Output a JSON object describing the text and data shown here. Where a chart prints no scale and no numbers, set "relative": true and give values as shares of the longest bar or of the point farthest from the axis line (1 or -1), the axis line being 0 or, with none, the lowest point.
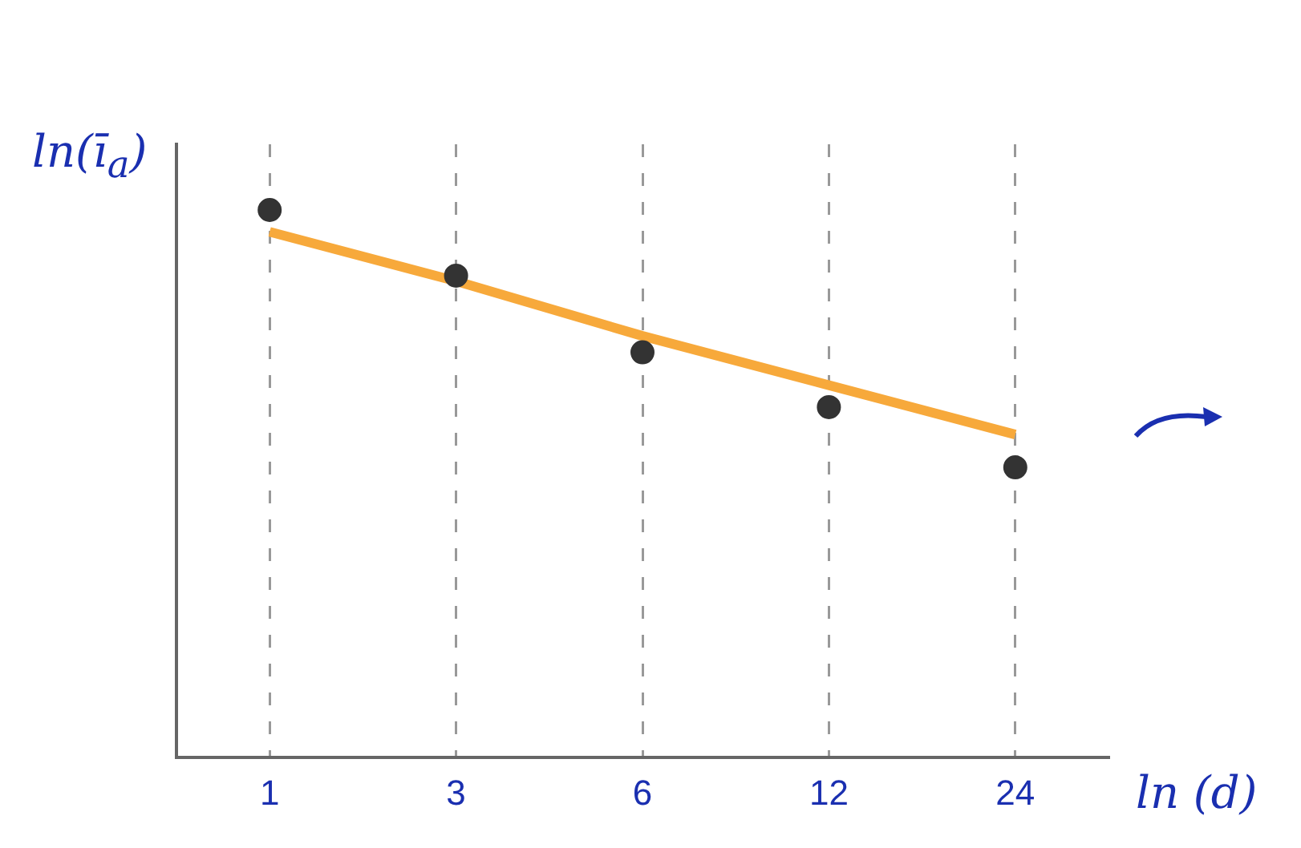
{
  "chart_data": {
    "type": "scatter",
    "xlabel": "ln (d)",
    "ylabel": "ln(ī$_{a}$)",
    "categories": [
      "1",
      "3",
      "6",
      "12",
      "24"
    ],
    "relative": true,
    "grid": "x",
    "legend": false,
    "series": [
      {
        "marker": "circle",
        "color": "#333333",
        "values": [
          1,
          0.88,
          0.74,
          0.64,
          0.53
        ]
      },
      {
        "type": "line",
        "marker": "none",
        "color": "#f7a93b",
        "values": [
          0.96,
          0.87,
          0.77,
          0.68,
          0.59
        ]
      }
    ]
  }
}
